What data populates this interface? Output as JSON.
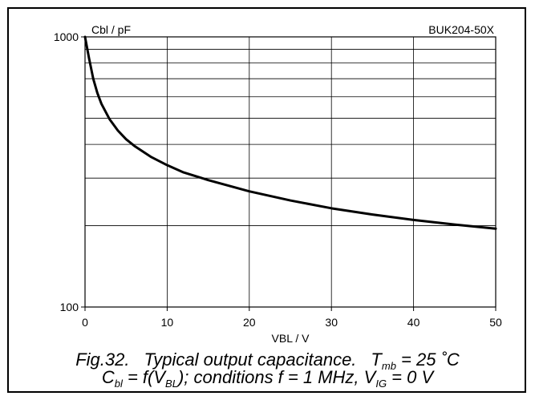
{
  "chart_data": {
    "type": "line",
    "title": "BUK204-50X",
    "ylabel": "Cbl / pF",
    "xlabel": "VBL / V",
    "xlim": [
      0,
      50
    ],
    "ylim": [
      100,
      1000
    ],
    "y_scale": "log",
    "grid": true,
    "x_ticks": [
      0,
      10,
      20,
      30,
      40,
      50
    ],
    "y_tick_labels": [
      "100",
      "1000"
    ],
    "series": [
      {
        "x": [
          0,
          0.5,
          1,
          1.5,
          2,
          3,
          4,
          5,
          6,
          8,
          10,
          12,
          15,
          20,
          25,
          30,
          35,
          40,
          45,
          50
        ],
        "values": [
          1000,
          830,
          700,
          620,
          565,
          495,
          450,
          418,
          395,
          360,
          335,
          315,
          295,
          268,
          248,
          232,
          220,
          210,
          202,
          195
        ]
      }
    ]
  },
  "caption": {
    "fig_label": "Fig.32.",
    "title": "Typical output capacitance.",
    "cond_T": "T",
    "cond_T_sub": "mb",
    "cond_T_val": " = 25 ˚C",
    "line2_C": "C",
    "line2_C_sub": "bl",
    "line2_f": " = f(V",
    "line2_V_sub": "BL",
    "line2_rest": "); conditions f = 1 MHz, V",
    "line2_IG_sub": "IG",
    "line2_end": " = 0 V"
  }
}
